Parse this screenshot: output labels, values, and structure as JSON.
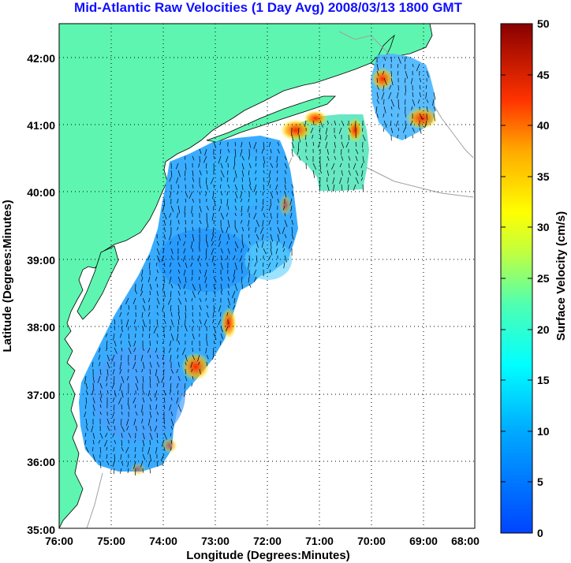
{
  "title": "Mid-Atlantic Raw Velocities (1 Day Avg) 2008/03/13 1800 GMT",
  "map": {
    "xlabel": "Longitude (Degrees:Minutes)",
    "ylabel": "Latitude (Degrees:Minutes)",
    "x_ticks": [
      "76:00",
      "75:00",
      "74:00",
      "73:00",
      "72:00",
      "71:00",
      "70:00",
      "69:00",
      "68:00"
    ],
    "y_ticks": [
      "35:00",
      "36:00",
      "37:00",
      "38:00",
      "39:00",
      "40:00",
      "41:00",
      "42:00"
    ],
    "lon_range": [
      -76,
      -68
    ],
    "lat_range": [
      35,
      42.5
    ],
    "grid": "dotted",
    "land_color": "#5ef5b0",
    "water_color": "#ffffff"
  },
  "colorbar": {
    "label": "Surface Velocity (cm/s)",
    "ticks": [
      "0",
      "5",
      "10",
      "15",
      "20",
      "25",
      "30",
      "35",
      "40",
      "45",
      "50"
    ],
    "range": [
      0,
      50
    ],
    "colormap": "jet"
  }
}
